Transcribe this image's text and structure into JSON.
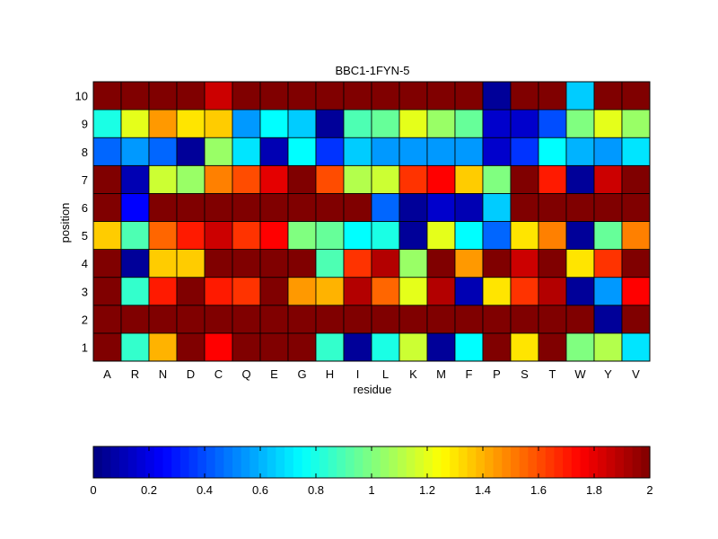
{
  "chart_data": {
    "type": "heatmap",
    "title": "BBC1-1FYN-5",
    "xlabel": "residue",
    "ylabel": "position",
    "colormap": "jet",
    "clim": [
      0,
      2
    ],
    "x_categories": [
      "A",
      "R",
      "N",
      "D",
      "C",
      "Q",
      "E",
      "G",
      "H",
      "I",
      "L",
      "K",
      "M",
      "F",
      "P",
      "S",
      "T",
      "W",
      "Y",
      "V"
    ],
    "y_categories": [
      "1",
      "2",
      "3",
      "4",
      "5",
      "6",
      "7",
      "8",
      "9",
      "10"
    ],
    "colorbar_ticks": [
      "0",
      "0.2",
      "0.4",
      "0.6",
      "0.8",
      "1",
      "1.2",
      "1.4",
      "1.6",
      "1.8",
      "2"
    ],
    "values": [
      [
        2.0,
        0.85,
        1.4,
        2.0,
        1.75,
        2.0,
        2.0,
        2.0,
        0.85,
        0.05,
        0.8,
        1.15,
        0.05,
        0.75,
        2.0,
        1.3,
        2.0,
        1.0,
        1.1,
        0.7
      ],
      [
        2.0,
        2.0,
        2.0,
        2.0,
        2.0,
        2.0,
        2.0,
        2.0,
        2.0,
        2.0,
        2.0,
        2.0,
        2.0,
        2.0,
        2.0,
        2.0,
        2.0,
        2.0,
        0.05,
        2.0
      ],
      [
        2.0,
        0.85,
        1.7,
        2.0,
        1.7,
        1.65,
        2.0,
        1.45,
        1.4,
        1.9,
        1.55,
        1.2,
        1.9,
        0.1,
        1.3,
        1.65,
        1.9,
        0.05,
        0.55,
        1.75
      ],
      [
        2.0,
        0.05,
        1.35,
        1.35,
        2.0,
        2.0,
        2.0,
        2.0,
        0.9,
        1.65,
        1.9,
        1.05,
        2.0,
        1.45,
        2.0,
        1.85,
        2.0,
        1.3,
        1.65,
        2.0
      ],
      [
        1.35,
        0.9,
        1.55,
        1.7,
        1.85,
        1.65,
        1.75,
        1.0,
        0.95,
        0.75,
        0.8,
        0.05,
        1.2,
        0.75,
        0.45,
        1.3,
        1.5,
        0.05,
        0.95,
        1.5
      ],
      [
        2.0,
        0.25,
        2.0,
        2.0,
        2.0,
        2.0,
        2.0,
        2.0,
        2.0,
        2.0,
        0.45,
        0.05,
        0.15,
        0.1,
        0.65,
        2.0,
        2.0,
        2.0,
        2.0,
        2.0
      ],
      [
        2.0,
        0.1,
        1.15,
        1.05,
        1.5,
        1.6,
        1.8,
        2.0,
        1.6,
        1.1,
        1.15,
        1.65,
        1.75,
        1.35,
        1.0,
        2.0,
        1.7,
        0.05,
        1.85,
        2.0
      ],
      [
        0.45,
        0.55,
        0.45,
        0.05,
        1.05,
        0.7,
        0.1,
        0.75,
        0.35,
        0.65,
        0.55,
        0.55,
        0.55,
        0.55,
        0.15,
        0.35,
        0.75,
        0.6,
        0.55,
        0.7
      ],
      [
        0.8,
        1.2,
        1.45,
        1.3,
        1.35,
        0.55,
        0.75,
        0.65,
        0.05,
        0.9,
        0.95,
        1.2,
        1.05,
        0.95,
        0.15,
        0.15,
        0.4,
        1.0,
        1.2,
        1.05
      ],
      [
        2.0,
        2.0,
        2.0,
        2.0,
        1.85,
        2.0,
        2.0,
        2.0,
        2.0,
        2.0,
        2.0,
        2.0,
        2.0,
        2.0,
        0.05,
        2.0,
        2.0,
        0.65,
        2.0,
        2.0
      ]
    ]
  }
}
